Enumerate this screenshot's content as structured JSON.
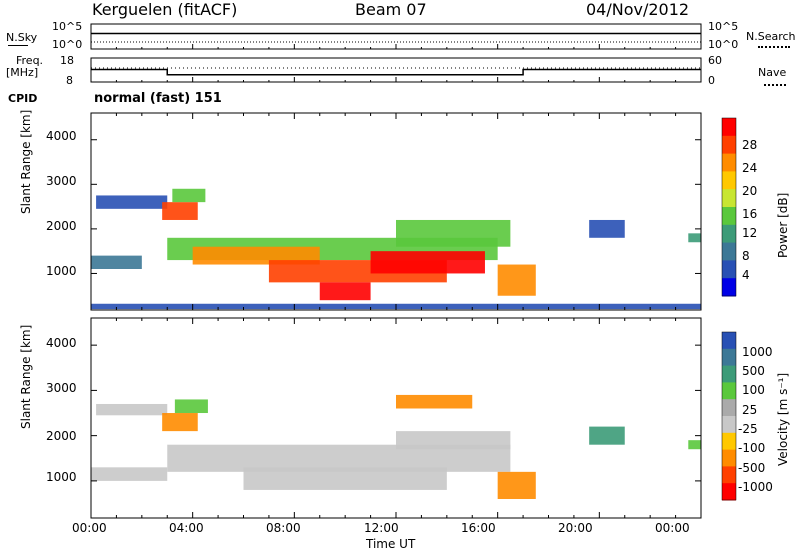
{
  "header": {
    "station": "Kerguelen (fitACF)",
    "beam": "Beam 07",
    "date": "04/Nov/2012"
  },
  "nsky_panel": {
    "label": "N.Sky",
    "left_ticks": [
      "10^5",
      "10^0"
    ],
    "right_ticks": [
      "10^5",
      "10^0"
    ],
    "right_label": "N.Search",
    "nsky_level": 3.1
  },
  "freq_panel": {
    "label_line1": "Freq.",
    "label_line2": "[MHz]",
    "left_ticks": [
      "18",
      "8"
    ],
    "right_ticks": [
      "60",
      "0"
    ],
    "right_label": "Nave",
    "freq_steps": [
      {
        "start": 0.0,
        "end": 3.0,
        "value": 13.2
      },
      {
        "start": 3.0,
        "end": 17.0,
        "value": 11.0
      },
      {
        "start": 17.0,
        "end": 24.0,
        "value": 13.2
      }
    ],
    "nave_level": 35
  },
  "cpid": {
    "label": "CPID",
    "value": "normal (fast) 151"
  },
  "chart_data": [
    {
      "type": "heatmap",
      "quantity": "Power",
      "ylabel": "Slant Range [km]",
      "yticks": [
        "1000",
        "2000",
        "3000",
        "4000"
      ],
      "ylim": [
        180,
        4600
      ],
      "colorbar": {
        "title": "Power [dB]",
        "ticks": [
          "28",
          "24",
          "20",
          "16",
          "12",
          "8",
          "4"
        ],
        "colors": [
          "#ff0000",
          "#ff4000",
          "#ff8c00",
          "#ffc800",
          "#c8e632",
          "#5ac83c",
          "#3c9b78",
          "#3c7896",
          "#2850b4",
          "#0000e6"
        ]
      },
      "echo_regions": [
        {
          "t0": 0.2,
          "t1": 3.0,
          "r0": 2450,
          "r1": 2750,
          "color": "#2850b4"
        },
        {
          "t0": 2.8,
          "t1": 4.2,
          "r0": 2200,
          "r1": 2600,
          "color": "#ff4000"
        },
        {
          "t0": 3.2,
          "t1": 4.5,
          "r0": 2600,
          "r1": 2900,
          "color": "#5ac83c"
        },
        {
          "t0": 3.0,
          "t1": 16.0,
          "r0": 1300,
          "r1": 1800,
          "color": "#5ac83c"
        },
        {
          "t0": 4.0,
          "t1": 9.0,
          "r0": 1200,
          "r1": 1600,
          "color": "#ff8c00"
        },
        {
          "t0": 7.0,
          "t1": 14.0,
          "r0": 800,
          "r1": 1300,
          "color": "#ff4000"
        },
        {
          "t0": 9.0,
          "t1": 11.0,
          "r0": 400,
          "r1": 800,
          "color": "#ff0000"
        },
        {
          "t0": 11.0,
          "t1": 15.5,
          "r0": 1000,
          "r1": 1500,
          "color": "#ff0000"
        },
        {
          "t0": 12.0,
          "t1": 16.5,
          "r0": 1600,
          "r1": 2200,
          "color": "#5ac83c"
        },
        {
          "t0": 0.0,
          "t1": 2.0,
          "r0": 1100,
          "r1": 1400,
          "color": "#3c7896"
        },
        {
          "t0": 16.0,
          "t1": 17.5,
          "r0": 500,
          "r1": 1200,
          "color": "#ff8c00"
        },
        {
          "t0": 19.6,
          "t1": 21.0,
          "r0": 1800,
          "r1": 2200,
          "color": "#2850b4"
        },
        {
          "t0": 23.5,
          "t1": 24.0,
          "r0": 1700,
          "r1": 1900,
          "color": "#3c9b78"
        },
        {
          "t0": 0.0,
          "t1": 24.0,
          "r0": 200,
          "r1": 320,
          "color": "#2850b4"
        }
      ]
    },
    {
      "type": "heatmap",
      "quantity": "Velocity",
      "ylabel": "Slant Range [km]",
      "yticks": [
        "1000",
        "2000",
        "3000",
        "4000"
      ],
      "ylim": [
        180,
        4600
      ],
      "xlabel": "Time UT",
      "xticks": [
        "00:00",
        "04:00",
        "08:00",
        "12:00",
        "16:00",
        "20:00",
        "00:00"
      ],
      "xlim": [
        0,
        24
      ],
      "colorbar": {
        "title": "Velocity [m s⁻¹]",
        "ticks": [
          "1000",
          "500",
          "100",
          "25",
          "-25",
          "-100",
          "-500",
          "-1000"
        ],
        "colors": [
          "#2850b4",
          "#3c7896",
          "#3c9b78",
          "#5ac83c",
          "#aaaaaa",
          "#c8c8c8",
          "#ffc800",
          "#ff8c00",
          "#ff4000",
          "#ff0000"
        ]
      },
      "echo_regions": [
        {
          "t0": 0.2,
          "t1": 3.0,
          "r0": 2450,
          "r1": 2700,
          "color": "#c8c8c8"
        },
        {
          "t0": 2.8,
          "t1": 4.2,
          "r0": 2100,
          "r1": 2500,
          "color": "#ff8c00"
        },
        {
          "t0": 3.3,
          "t1": 4.6,
          "r0": 2500,
          "r1": 2800,
          "color": "#5ac83c"
        },
        {
          "t0": 3.0,
          "t1": 16.5,
          "r0": 1200,
          "r1": 1800,
          "color": "#c8c8c8"
        },
        {
          "t0": 6.0,
          "t1": 14.0,
          "r0": 800,
          "r1": 1300,
          "color": "#c8c8c8"
        },
        {
          "t0": 12.0,
          "t1": 16.5,
          "r0": 1700,
          "r1": 2100,
          "color": "#c8c8c8"
        },
        {
          "t0": 0.0,
          "t1": 3.0,
          "r0": 1000,
          "r1": 1300,
          "color": "#c8c8c8"
        },
        {
          "t0": 16.0,
          "t1": 17.5,
          "r0": 600,
          "r1": 1200,
          "color": "#ff8c00"
        },
        {
          "t0": 19.6,
          "t1": 21.0,
          "r0": 1800,
          "r1": 2200,
          "color": "#3c9b78"
        },
        {
          "t0": 23.5,
          "t1": 24.0,
          "r0": 1700,
          "r1": 1900,
          "color": "#5ac83c"
        },
        {
          "t0": 12.0,
          "t1": 15.0,
          "r0": 2600,
          "r1": 2900,
          "color": "#ff8c00"
        }
      ]
    }
  ]
}
